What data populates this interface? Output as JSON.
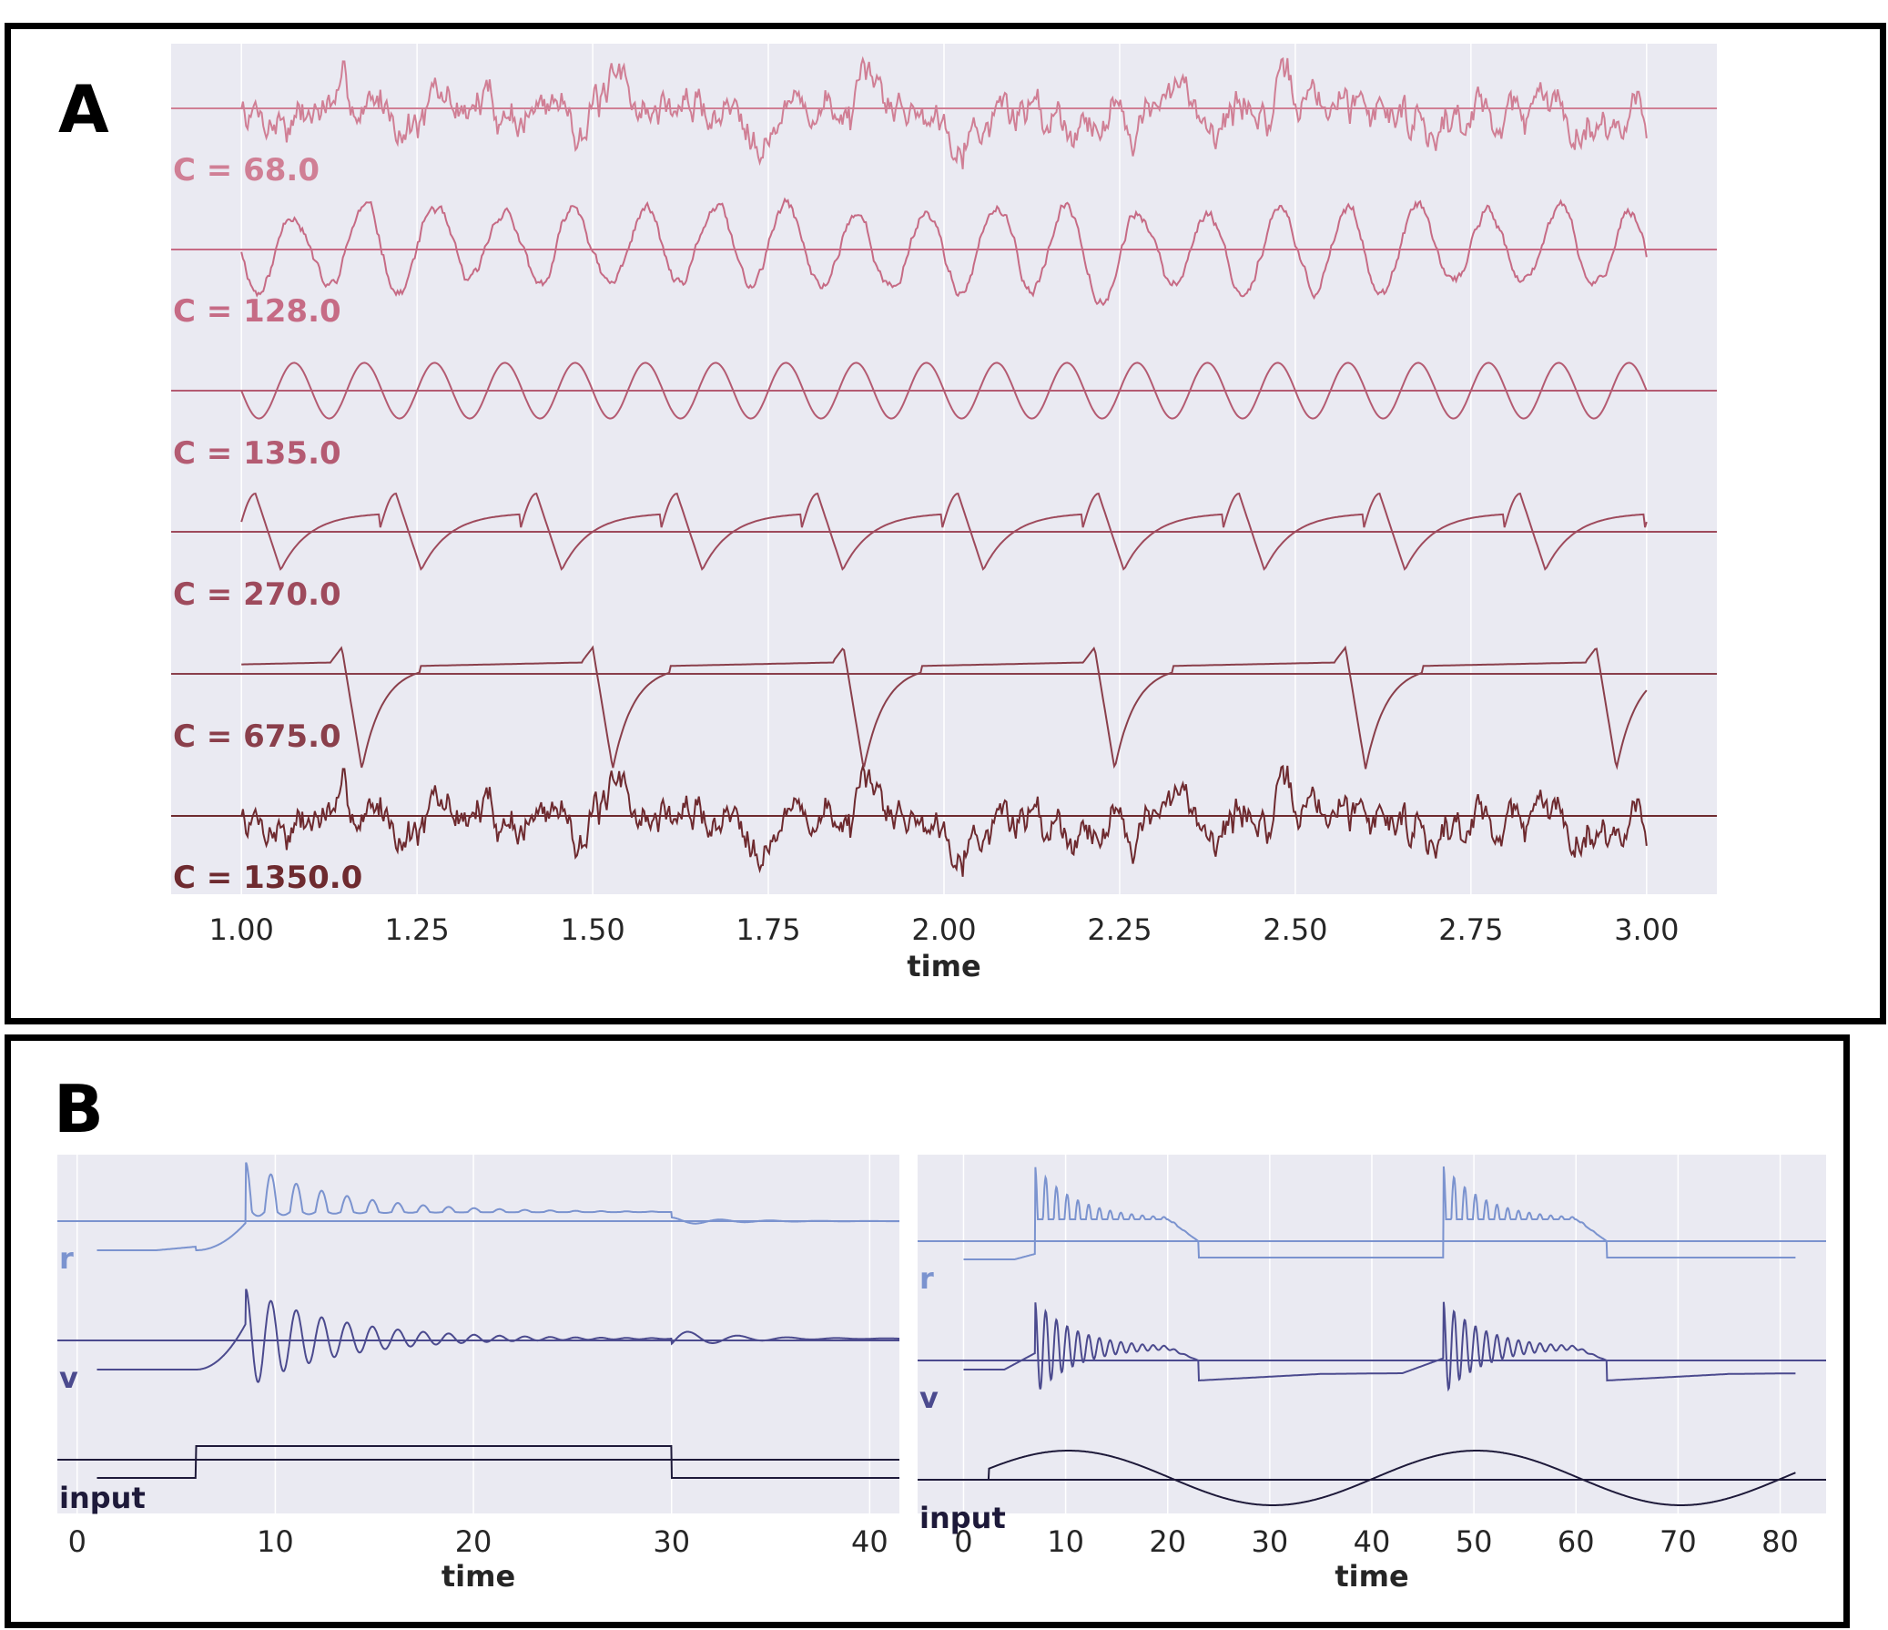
{
  "panels": {
    "a": {
      "letter": "A"
    },
    "b": {
      "letter": "B"
    }
  },
  "chart_data": [
    {
      "id": "A",
      "type": "line",
      "xlabel": "time",
      "ylabel": "",
      "xlim": [
        0.9,
        3.1
      ],
      "x_ticks": [
        "1.00",
        "1.25",
        "1.50",
        "1.75",
        "2.00",
        "2.25",
        "2.50",
        "2.75",
        "3.00"
      ],
      "x_tick_values": [
        1.0,
        1.25,
        1.5,
        1.75,
        2.0,
        2.25,
        2.5,
        2.75,
        3.0
      ],
      "x_range": [
        1.0,
        3.0
      ],
      "grid": true,
      "background": "#eaeaf2",
      "series": [
        {
          "name": "C = 68.0",
          "color": "#d07f95",
          "waveform": "noise",
          "freq_hz": 0,
          "amplitude": 1.0,
          "seed": 7
        },
        {
          "name": "C = 128.0",
          "color": "#c66b85",
          "waveform": "noisy_oscillation",
          "freq_hz": 10,
          "amplitude": 1.0,
          "seed": 11
        },
        {
          "name": "C = 135.0",
          "color": "#b45b72",
          "waveform": "sine",
          "freq_hz": 10,
          "amplitude": 0.9
        },
        {
          "name": "C = 270.0",
          "color": "#9e4a5c",
          "waveform": "relaxation",
          "freq_hz": 5,
          "amplitude": 1.0
        },
        {
          "name": "C = 675.0",
          "color": "#8a3f4b",
          "waveform": "bursting",
          "freq_hz": 2.8,
          "amplitude": 1.0
        },
        {
          "name": "C = 1350.0",
          "color": "#6e2a2f",
          "waveform": "noise",
          "freq_hz": 0,
          "amplitude": 1.0,
          "seed": 7
        }
      ]
    },
    {
      "id": "B-left",
      "type": "line",
      "xlabel": "time",
      "ylabel": "",
      "xlim": [
        -1,
        41.5
      ],
      "x_ticks": [
        "0",
        "10",
        "20",
        "30",
        "40"
      ],
      "x_tick_values": [
        0,
        10,
        20,
        30,
        40
      ],
      "x_range": [
        1,
        41.5
      ],
      "grid": true,
      "background": "#eaeaf2",
      "input": {
        "type": "step",
        "on": 6,
        "off": 30
      },
      "series": [
        {
          "name": "r",
          "color": "#7b93cf"
        },
        {
          "name": "v",
          "color": "#4b4a8e"
        },
        {
          "name": "input",
          "color": "#1e1a3a"
        }
      ]
    },
    {
      "id": "B-right",
      "type": "line",
      "xlabel": "time",
      "ylabel": "",
      "xlim": [
        -4.5,
        84.5
      ],
      "x_ticks": [
        "0",
        "10",
        "20",
        "30",
        "40",
        "50",
        "60",
        "70",
        "80"
      ],
      "x_tick_values": [
        0,
        10,
        20,
        30,
        40,
        50,
        60,
        70,
        80
      ],
      "x_range": [
        0,
        81.5
      ],
      "grid": true,
      "background": "#eaeaf2",
      "input": {
        "type": "sine",
        "start": 2.5,
        "period": 40
      },
      "series": [
        {
          "name": "r",
          "color": "#7b93cf"
        },
        {
          "name": "v",
          "color": "#4b4a8e"
        },
        {
          "name": "input",
          "color": "#1e1a3a"
        }
      ]
    }
  ]
}
